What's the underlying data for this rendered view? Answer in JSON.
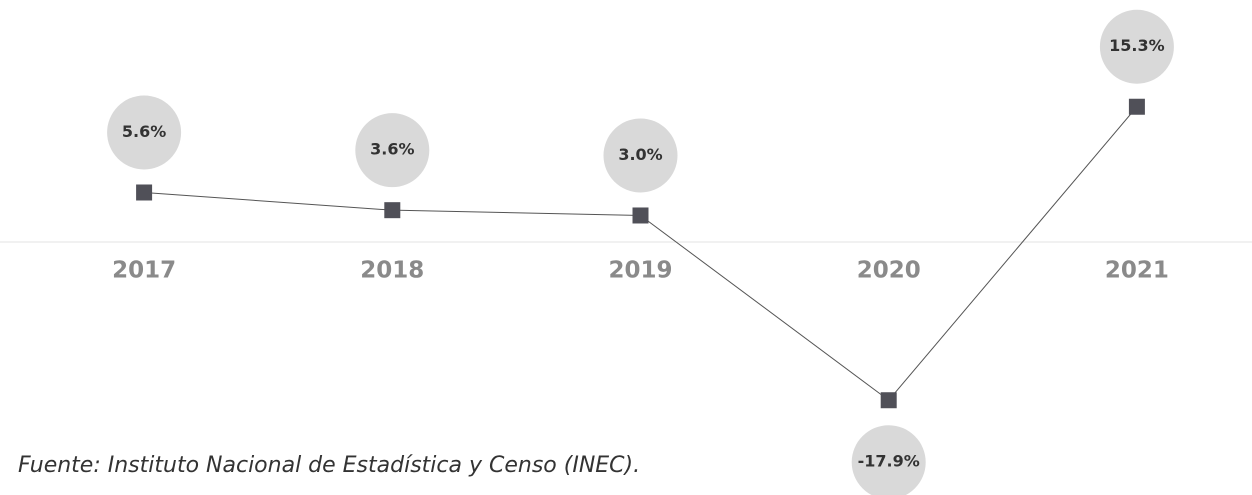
{
  "chart_data": {
    "type": "line",
    "categories": [
      "2017",
      "2018",
      "2019",
      "2020",
      "2021"
    ],
    "values": [
      5.6,
      3.6,
      3.0,
      -17.9,
      15.3
    ],
    "value_labels": [
      "5.6%",
      "3.6%",
      "3.0%",
      "-17.9%",
      "15.3%"
    ],
    "color": "#505058",
    "ylim": [
      -25,
      25
    ],
    "source": "Fuente: Instituto Nacional de Estadística y Censo (INEC)."
  }
}
